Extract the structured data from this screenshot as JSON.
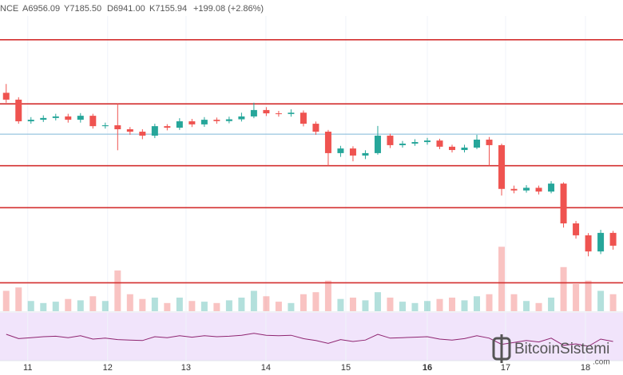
{
  "header": {
    "source": "NCE",
    "ohlc": [
      "A6956.09",
      "Y7185.50",
      "D6941.00",
      "K7155.94",
      "+199.08 (+2.86%)"
    ]
  },
  "watermark": {
    "name": "BitcoinSistemi",
    "suffix": ".com"
  },
  "chart_data": {
    "type": "candlestick",
    "up_color": "#26a69a",
    "down_color": "#ef5350",
    "open": [
      7880,
      7849,
      7751,
      7758,
      7766,
      7773,
      7758,
      7776,
      7729,
      7733,
      7715,
      7704,
      7686,
      7729,
      7722,
      7751,
      7737,
      7758,
      7752,
      7760,
      7773,
      7802,
      7787,
      7784,
      7790,
      7740,
      7704,
      7607,
      7628,
      7596,
      7607,
      7686,
      7643,
      7650,
      7657,
      7664,
      7636,
      7621,
      7632,
      7668,
      7643,
      7445,
      7438,
      7450,
      7433,
      7469,
      7289,
      7235,
      7162,
      7246
    ],
    "high": [
      7920,
      7860,
      7770,
      7778,
      7785,
      7785,
      7788,
      7785,
      7745,
      7830,
      7725,
      7715,
      7740,
      7738,
      7765,
      7762,
      7770,
      7768,
      7772,
      7790,
      7835,
      7815,
      7798,
      7805,
      7800,
      7750,
      7712,
      7640,
      7638,
      7620,
      7730,
      7695,
      7662,
      7670,
      7676,
      7672,
      7645,
      7645,
      7690,
      7680,
      7650,
      7460,
      7462,
      7460,
      7480,
      7475,
      7300,
      7245,
      7260,
      7255
    ],
    "low": [
      7835,
      7740,
      7740,
      7748,
      7755,
      7745,
      7745,
      7718,
      7718,
      7620,
      7690,
      7670,
      7675,
      7710,
      7712,
      7725,
      7726,
      7740,
      7742,
      7750,
      7765,
      7775,
      7772,
      7772,
      7728,
      7690,
      7550,
      7590,
      7570,
      7580,
      7600,
      7630,
      7632,
      7640,
      7645,
      7625,
      7610,
      7610,
      7625,
      7550,
      7415,
      7425,
      7428,
      7420,
      7425,
      7270,
      7220,
      7140,
      7150,
      7170
    ],
    "close": [
      7849,
      7751,
      7758,
      7766,
      7773,
      7758,
      7776,
      7729,
      7733,
      7715,
      7704,
      7686,
      7729,
      7722,
      7751,
      7737,
      7758,
      7752,
      7760,
      7773,
      7802,
      7787,
      7784,
      7790,
      7740,
      7704,
      7607,
      7628,
      7596,
      7607,
      7686,
      7643,
      7650,
      7657,
      7664,
      7636,
      7621,
      7632,
      7668,
      7643,
      7445,
      7438,
      7450,
      7433,
      7469,
      7289,
      7235,
      7162,
      7246,
      7188
    ],
    "xlim": [
      -0.5,
      49.8
    ],
    "ylim": [
      7000,
      8300
    ],
    "xticks": [
      {
        "value": 1.74,
        "label": "11"
      },
      {
        "value": 8.19,
        "label": "12"
      },
      {
        "value": 14.52,
        "label": "13"
      },
      {
        "value": 20.97,
        "label": "14"
      },
      {
        "value": 27.42,
        "label": "15"
      },
      {
        "value": 34,
        "label": "16",
        "bold": true
      },
      {
        "value": 40.32,
        "label": "17"
      },
      {
        "value": 46.77,
        "label": "18"
      }
    ],
    "levels": [
      8120,
      7830,
      7550,
      7360,
      7020
    ],
    "level_color": "#d32f2f",
    "last_price_line": 7693,
    "last_price_color": "#7fb8d8",
    "volume": [
      30,
      35,
      15,
      12,
      14,
      18,
      16,
      22,
      15,
      60,
      25,
      18,
      20,
      12,
      20,
      15,
      14,
      12,
      16,
      20,
      30,
      22,
      14,
      12,
      25,
      28,
      45,
      18,
      20,
      16,
      28,
      20,
      14,
      12,
      15,
      18,
      20,
      16,
      22,
      25,
      95,
      25,
      15,
      12,
      20,
      65,
      40,
      45,
      30,
      25
    ],
    "volume_lim": [
      0,
      100
    ],
    "rsi": [
      55,
      46,
      48,
      50,
      51,
      48,
      52,
      45,
      47,
      44,
      43,
      42,
      50,
      48,
      52,
      49,
      52,
      50,
      51,
      53,
      57,
      53,
      52,
      53,
      46,
      42,
      36,
      44,
      40,
      43,
      55,
      47,
      48,
      49,
      50,
      45,
      43,
      46,
      52,
      47,
      34,
      38,
      42,
      39,
      47,
      32,
      35,
      30,
      45,
      40
    ],
    "rsi_lim": [
      0,
      100
    ],
    "rsi_color": "#8e2470",
    "rsi_fill": "#f1e4fb"
  }
}
